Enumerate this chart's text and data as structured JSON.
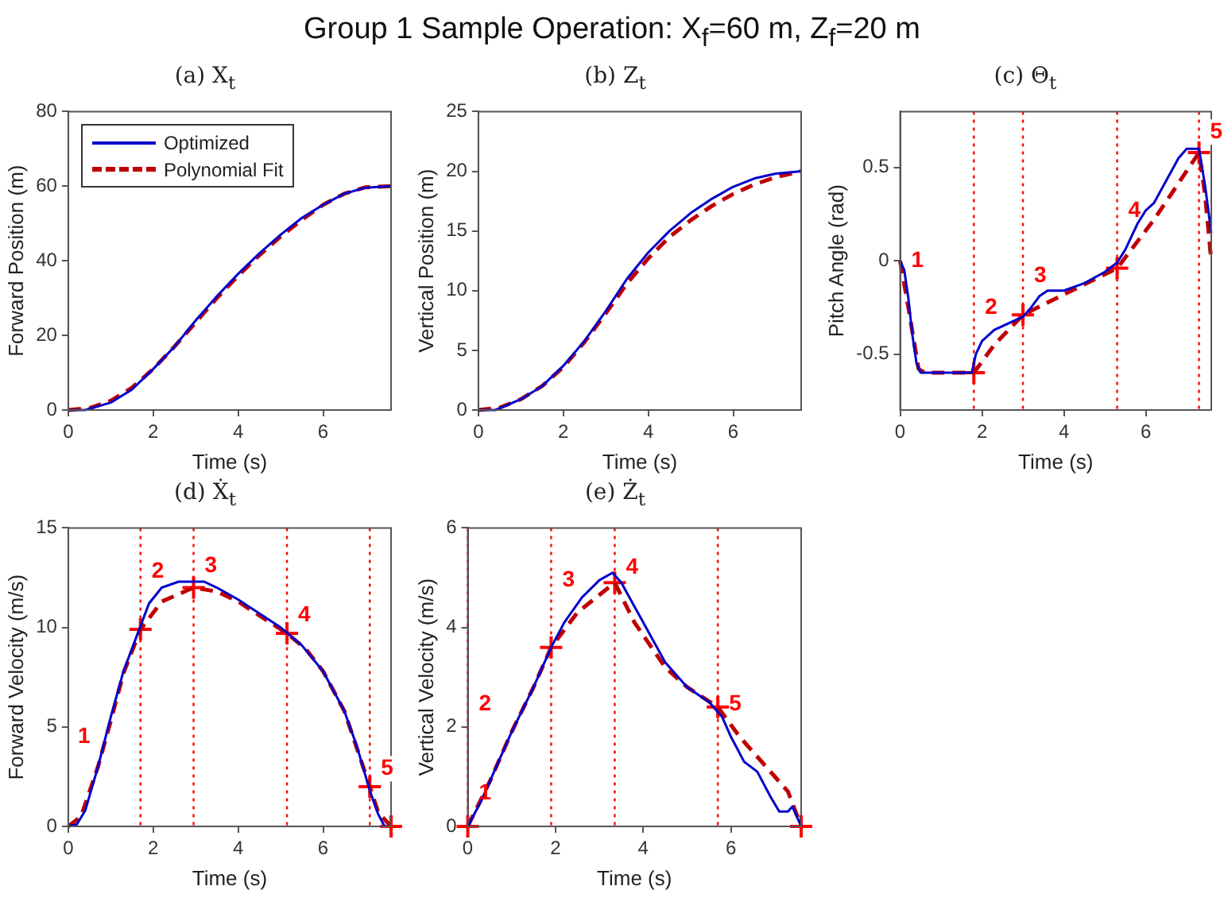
{
  "chart_data": [
    {
      "type": "other",
      "title": "Group 1 Sample Operation: X$_{f}$=60 m, Z$_{f}$=20 m"
    },
    {
      "type": "line",
      "title": "(a) X$_{t}$",
      "xlabel": "Time (s)",
      "ylabel": "Forward Position (m)",
      "xlim": [
        0,
        7.6
      ],
      "xticks": [
        0,
        2,
        4,
        6
      ],
      "ylim": [
        0,
        80
      ],
      "yticks": [
        0,
        20,
        40,
        60,
        80
      ],
      "grid": false,
      "legend": "top left",
      "series": [
        {
          "name": "Optimized",
          "color": "#0000cc",
          "line_style": "solid",
          "marker": "none",
          "x": [
            0,
            0.4,
            1,
            1.5,
            2,
            2.5,
            3,
            3.5,
            4,
            4.5,
            5,
            5.5,
            6,
            6.5,
            7,
            7.6
          ],
          "values": [
            0,
            0,
            2,
            5.5,
            11,
            17,
            24,
            30.5,
            36.5,
            42,
            47,
            51.5,
            55,
            58,
            59.6,
            60
          ]
        },
        {
          "name": "Polynomial Fit",
          "color": "#c00000",
          "line_style": "dashed",
          "marker": "none",
          "x": [
            0,
            0.5,
            1,
            1.5,
            2,
            2.5,
            3,
            3.5,
            4,
            4.5,
            5,
            5.5,
            6,
            6.5,
            7,
            7.6
          ],
          "values": [
            0,
            0.5,
            2.5,
            6,
            11,
            17,
            23.5,
            30,
            36,
            41.5,
            46.5,
            51,
            55,
            58,
            59.7,
            60
          ]
        }
      ]
    },
    {
      "type": "line",
      "title": "(b) Z$_{t}$",
      "xlabel": "Time (s)",
      "ylabel": "Vertical Position (m)",
      "xlim": [
        0,
        7.6
      ],
      "xticks": [
        0,
        2,
        4,
        6
      ],
      "ylim": [
        0,
        25
      ],
      "yticks": [
        0,
        5,
        10,
        15,
        20,
        25
      ],
      "grid": false,
      "series": [
        {
          "color": "#0000cc",
          "line_style": "solid",
          "marker": "none",
          "x": [
            0,
            0.4,
            1,
            1.5,
            2,
            2.5,
            3,
            3.5,
            4,
            4.5,
            5,
            5.5,
            6,
            6.5,
            7,
            7.6
          ],
          "values": [
            0,
            0,
            0.9,
            2,
            3.7,
            5.8,
            8.3,
            11,
            13.2,
            15,
            16.5,
            17.7,
            18.7,
            19.4,
            19.8,
            20
          ]
        },
        {
          "color": "#c00000",
          "line_style": "dashed",
          "marker": "none",
          "x": [
            0,
            0.5,
            1,
            1.5,
            2,
            2.5,
            3,
            3.5,
            4,
            4.5,
            5,
            5.5,
            6,
            6.5,
            7,
            7.6
          ],
          "values": [
            0,
            0.2,
            0.9,
            2,
            3.6,
            5.7,
            8.1,
            10.6,
            12.7,
            14.5,
            15.9,
            17.1,
            18.1,
            18.9,
            19.5,
            20
          ]
        }
      ]
    },
    {
      "type": "line",
      "title": "(c) Θ$_{t}$",
      "xlabel": "Time (s)",
      "ylabel": "Pitch Angle (rad)",
      "xlim": [
        0,
        7.6
      ],
      "xticks": [
        0,
        2,
        4,
        6
      ],
      "ylim": [
        -0.8,
        0.8
      ],
      "yticks": [
        -0.5,
        0,
        0.5
      ],
      "grid": false,
      "series": [
        {
          "color": "#0000cc",
          "line_style": "solid",
          "marker": "none",
          "x": [
            0,
            0.1,
            0.2,
            0.3,
            0.4,
            0.5,
            1.75,
            1.85,
            2,
            2.3,
            2.7,
            3,
            3.2,
            3.4,
            3.6,
            4,
            4.5,
            5,
            5.3,
            5.5,
            5.8,
            6,
            6.2,
            6.5,
            6.8,
            7,
            7.3,
            7.45,
            7.6
          ],
          "values": [
            0,
            -0.05,
            -0.2,
            -0.4,
            -0.55,
            -0.6,
            -0.6,
            -0.5,
            -0.43,
            -0.37,
            -0.33,
            -0.3,
            -0.25,
            -0.19,
            -0.16,
            -0.16,
            -0.12,
            -0.06,
            -0.01,
            0.06,
            0.2,
            0.27,
            0.31,
            0.43,
            0.55,
            0.6,
            0.6,
            0.4,
            0.15
          ]
        },
        {
          "color": "#c00000",
          "line_style": "dashed",
          "marker": "none",
          "x": [
            0,
            0.2,
            0.45,
            0.6,
            1.8,
            2.3,
            3,
            4,
            5.3,
            6.2,
            7.3,
            7.45,
            7.6
          ],
          "values": [
            0,
            -0.25,
            -0.58,
            -0.6,
            -0.6,
            -0.45,
            -0.29,
            -0.18,
            -0.04,
            0.22,
            0.58,
            0.35,
            0
          ]
        },
        {
          "type": "scatter",
          "color": "#ff0000",
          "marker": "cross",
          "x": [
            1.8,
            3,
            5.3,
            7.3
          ],
          "values": [
            -0.6,
            -0.29,
            -0.04,
            0.58
          ]
        }
      ],
      "ref_lines": [
        {
          "axis": "x",
          "value": 1.8,
          "color": "#ff0000",
          "line_style": "dotted"
        },
        {
          "axis": "x",
          "value": 3,
          "color": "#ff0000",
          "line_style": "dotted"
        },
        {
          "axis": "x",
          "value": 5.3,
          "color": "#ff0000",
          "line_style": "dotted"
        },
        {
          "axis": "x",
          "value": 7.3,
          "color": "#ff0000",
          "line_style": "dotted"
        }
      ],
      "annotations": [
        {
          "text": "1",
          "x": 0,
          "y": 0
        },
        {
          "text": "2",
          "x": 1.8,
          "y": -0.25
        },
        {
          "text": "3",
          "x": 3,
          "y": -0.08
        },
        {
          "text": "4",
          "x": 5.3,
          "y": 0.27
        },
        {
          "text": "5",
          "x": 7.3,
          "y": 0.69
        }
      ]
    },
    {
      "type": "line",
      "title": "(d) Ẋ$_{t}$",
      "xlabel": "Time (s)",
      "ylabel": "Forward Velocity (m/s)",
      "xlim": [
        0,
        7.6
      ],
      "xticks": [
        0,
        2,
        4,
        6
      ],
      "ylim": [
        0,
        15
      ],
      "yticks": [
        0,
        5,
        10,
        15
      ],
      "grid": false,
      "series": [
        {
          "color": "#0000cc",
          "line_style": "solid",
          "marker": "none",
          "x": [
            0,
            0.2,
            0.4,
            0.7,
            1,
            1.3,
            1.6,
            1.9,
            2.2,
            2.6,
            3.2,
            3.5,
            4,
            4.5,
            5,
            5.5,
            6,
            6.5,
            6.8,
            7.1,
            7.3,
            7.45
          ],
          "values": [
            0,
            0.1,
            0.8,
            3,
            5.5,
            7.8,
            9.5,
            11.2,
            12,
            12.3,
            12.3,
            12,
            11.4,
            10.7,
            10,
            9.1,
            7.8,
            5.8,
            4,
            1.8,
            0.6,
            0
          ]
        },
        {
          "color": "#c00000",
          "line_style": "dashed",
          "marker": "none",
          "x": [
            0,
            0.3,
            0.7,
            1,
            1.3,
            1.7,
            2.2,
            2.95,
            3.5,
            4,
            4.5,
            5.15,
            5.6,
            6,
            6.5,
            7.1,
            7.3,
            7.6
          ],
          "values": [
            0,
            0.5,
            3,
            5.3,
            7.7,
            9.9,
            11.3,
            12,
            11.8,
            11.3,
            10.6,
            9.7,
            8.9,
            7.8,
            5.8,
            2,
            0.7,
            0
          ]
        },
        {
          "type": "scatter",
          "color": "#ff0000",
          "marker": "cross",
          "x": [
            1.7,
            2.95,
            5.15,
            7.1,
            7.6
          ],
          "values": [
            9.9,
            12,
            9.7,
            2,
            0
          ]
        }
      ],
      "ref_lines": [
        {
          "axis": "x",
          "value": 1.7,
          "color": "#ff0000",
          "line_style": "dotted"
        },
        {
          "axis": "x",
          "value": 2.95,
          "color": "#ff0000",
          "line_style": "dotted"
        },
        {
          "axis": "x",
          "value": 5.15,
          "color": "#ff0000",
          "line_style": "dotted"
        },
        {
          "axis": "x",
          "value": 7.1,
          "color": "#ff0000",
          "line_style": "dotted"
        }
      ],
      "annotations": [
        "1",
        {
          "text": "2",
          "x": 1.7,
          "y": 12.8
        },
        {
          "text": "3",
          "x": 2.95,
          "y": 13.1
        },
        {
          "text": "4",
          "x": 5.15,
          "y": 10.6
        },
        {
          "text": "5",
          "x": 7.1,
          "y": 2.9
        }
      ]
    },
    {
      "type": "line",
      "title": "(e) Ż$_{t}$",
      "xlabel": "Time (s)",
      "ylabel": "Vertical Velocity (m/s)",
      "xlim": [
        0,
        7.6
      ],
      "xticks": [
        0,
        2,
        4,
        6
      ],
      "ylim": [
        0,
        6
      ],
      "yticks": [
        0,
        2,
        4,
        6
      ],
      "grid": false,
      "series": [
        {
          "color": "#0000cc",
          "line_style": "solid",
          "marker": "none",
          "x": [
            0,
            0.3,
            0.7,
            1,
            1.5,
            1.9,
            2.2,
            2.6,
            3,
            3.3,
            3.5,
            4,
            4.5,
            5,
            5.5,
            5.8,
            6,
            6.3,
            6.6,
            6.9,
            7.1,
            7.3,
            7.4,
            7.5,
            7.6
          ],
          "values": [
            0,
            0.5,
            1.3,
            1.9,
            2.8,
            3.6,
            4.1,
            4.6,
            4.95,
            5.1,
            4.9,
            4.1,
            3.3,
            2.8,
            2.5,
            2.2,
            1.8,
            1.3,
            1.1,
            0.6,
            0.3,
            0.3,
            0.4,
            0.2,
            0
          ]
        },
        {
          "color": "#c00000",
          "line_style": "dashed",
          "marker": "none",
          "x": [
            0,
            0.5,
            1,
            1.5,
            1.9,
            2.5,
            3.35,
            3.8,
            4.5,
            5,
            5.7,
            6.2,
            6.8,
            7.3,
            7.6
          ],
          "values": [
            0,
            0.9,
            1.9,
            2.8,
            3.6,
            4.3,
            4.9,
            4.1,
            3.2,
            2.8,
            2.4,
            1.8,
            1.2,
            0.7,
            0
          ]
        },
        {
          "type": "scatter",
          "color": "#ff0000",
          "marker": "cross",
          "x": [
            0,
            1.9,
            3.35,
            5.7,
            7.6
          ],
          "values": [
            0,
            3.6,
            4.9,
            2.4,
            0
          ]
        }
      ],
      "ref_lines": [
        {
          "axis": "x",
          "value": 0,
          "color": "#ff0000",
          "line_style": "dotted"
        },
        {
          "axis": "x",
          "value": 1.9,
          "color": "#ff0000",
          "line_style": "dotted"
        },
        {
          "axis": "x",
          "value": 3.35,
          "color": "#ff0000",
          "line_style": "dotted"
        },
        {
          "axis": "x",
          "value": 5.7,
          "color": "#ff0000",
          "line_style": "dotted"
        }
      ],
      "annotations": [
        {
          "text": "1",
          "x": 0,
          "y": 0.67
        },
        {
          "text": "2",
          "x": 0,
          "y": 2.45
        },
        {
          "text": "3",
          "x": 1.9,
          "y": 4.95
        },
        {
          "text": "4",
          "x": 3.35,
          "y": 5.2
        },
        {
          "text": "5",
          "x": 5.7,
          "y": 2.45
        }
      ]
    }
  ]
}
